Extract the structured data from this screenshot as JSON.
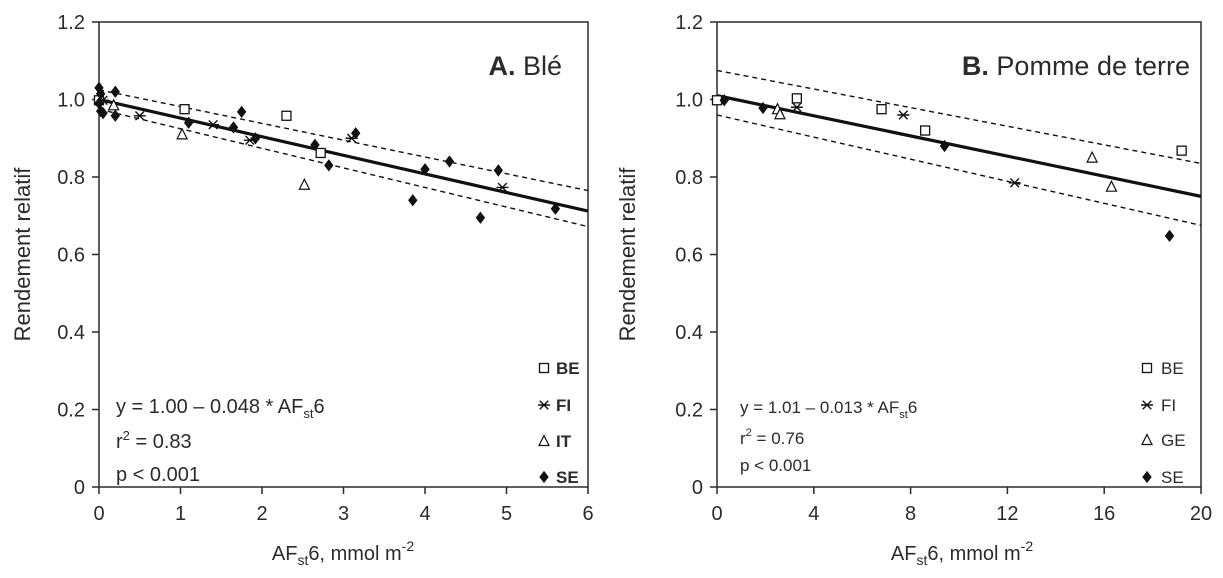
{
  "colors": {
    "axis": "#2b2b2b",
    "line": "#111111",
    "text": "#2b2b2b"
  },
  "chart_data": [
    {
      "type": "scatter",
      "panel_label": "A.",
      "title": "Blé",
      "xlabel_parts": {
        "pre": "AF",
        "sub": "st",
        "post": "6, mmol m",
        "sup": "-2"
      },
      "ylabel": "Rendement relatif",
      "xlim": [
        0,
        6
      ],
      "ylim": [
        0,
        1.2
      ],
      "x_ticks": [
        0,
        1,
        2,
        3,
        4,
        5,
        6
      ],
      "y_ticks": [
        0,
        0.2,
        0.4,
        0.6,
        0.8,
        1.0,
        1.2
      ],
      "x_tick_labels": [
        "0",
        "1",
        "2",
        "3",
        "4",
        "5",
        "6"
      ],
      "y_tick_labels": [
        "0",
        "0.2",
        "0.4",
        "0.6",
        "0.8",
        "1.0",
        "1.2"
      ],
      "regression": {
        "intercept": 1.0,
        "slope": -0.048,
        "ci_upper": [
          [
            0,
            1.025
          ],
          [
            6,
            0.765
          ]
        ],
        "ci_lower": [
          [
            0,
            0.975
          ],
          [
            6,
            0.672
          ]
        ]
      },
      "equation": {
        "main": "y = 1.00 – 0.048 * AF",
        "sub": "st",
        "tail": "6"
      },
      "r2": {
        "label": "r",
        "sup": "2",
        "value": " = 0.83"
      },
      "p_value": "p < 0.001",
      "legend": [
        "BE",
        "FI",
        "IT",
        "SE"
      ],
      "legend_bold": true,
      "series": [
        {
          "name": "BE",
          "marker": "square",
          "points": [
            [
              0.0,
              0.998
            ],
            [
              1.05,
              0.975
            ],
            [
              2.3,
              0.958
            ],
            [
              2.72,
              0.862
            ]
          ]
        },
        {
          "name": "FI",
          "marker": "star",
          "points": [
            [
              0.05,
              0.998
            ],
            [
              0.5,
              0.958
            ],
            [
              1.4,
              0.935
            ],
            [
              1.85,
              0.895
            ],
            [
              3.1,
              0.9
            ],
            [
              4.95,
              0.773
            ]
          ]
        },
        {
          "name": "IT",
          "marker": "triangle",
          "points": [
            [
              0.18,
              0.985
            ],
            [
              1.02,
              0.91
            ],
            [
              2.52,
              0.78
            ]
          ]
        },
        {
          "name": "SE",
          "marker": "diamond",
          "points": [
            [
              0.0,
              1.03
            ],
            [
              0.02,
              1.015
            ],
            [
              0.0,
              0.99
            ],
            [
              0.02,
              0.97
            ],
            [
              0.05,
              0.965
            ],
            [
              0.2,
              1.02
            ],
            [
              0.2,
              0.958
            ],
            [
              1.1,
              0.94
            ],
            [
              1.65,
              0.928
            ],
            [
              1.75,
              0.968
            ],
            [
              1.92,
              0.9
            ],
            [
              2.65,
              0.883
            ],
            [
              2.82,
              0.83
            ],
            [
              3.15,
              0.913
            ],
            [
              3.85,
              0.74
            ],
            [
              4.0,
              0.82
            ],
            [
              4.3,
              0.84
            ],
            [
              4.68,
              0.695
            ],
            [
              4.9,
              0.817
            ],
            [
              5.6,
              0.718
            ]
          ]
        }
      ]
    },
    {
      "type": "scatter",
      "panel_label": "B.",
      "title": "Pomme de terre",
      "xlabel_parts": {
        "pre": "AF",
        "sub": "st",
        "post": "6, mmol m",
        "sup": "-2"
      },
      "ylabel": "Rendement relatif",
      "xlim": [
        0,
        20
      ],
      "ylim": [
        0,
        1.2
      ],
      "x_ticks": [
        0,
        4,
        8,
        12,
        16,
        20
      ],
      "y_ticks": [
        0,
        0.2,
        0.4,
        0.6,
        0.8,
        1.0,
        1.2
      ],
      "x_tick_labels": [
        "0",
        "4",
        "8",
        "12",
        "16",
        "20"
      ],
      "y_tick_labels": [
        "0",
        "0.2",
        "0.4",
        "0.6",
        "0.8",
        "1.0",
        "1.2"
      ],
      "regression": {
        "intercept": 1.01,
        "slope": -0.013,
        "ci_upper": [
          [
            0,
            1.075
          ],
          [
            20,
            0.835
          ]
        ],
        "ci_lower": [
          [
            0,
            0.96
          ],
          [
            20,
            0.675
          ]
        ]
      },
      "equation": {
        "main": "y = 1.01 – 0.013 * AF",
        "sub": "st",
        "tail": "6"
      },
      "r2": {
        "label": "r",
        "sup": "2",
        "value": " = 0.76"
      },
      "p_value": "p < 0.001",
      "legend": [
        "BE",
        "FI",
        "GE",
        "SE"
      ],
      "legend_bold": false,
      "series": [
        {
          "name": "BE",
          "marker": "square",
          "points": [
            [
              0.0,
              0.998
            ],
            [
              3.3,
              1.003
            ],
            [
              6.8,
              0.975
            ],
            [
              8.6,
              0.92
            ],
            [
              19.2,
              0.868
            ]
          ]
        },
        {
          "name": "FI",
          "marker": "star",
          "points": [
            [
              3.3,
              0.98
            ],
            [
              7.7,
              0.96
            ],
            [
              12.3,
              0.785
            ]
          ]
        },
        {
          "name": "GE",
          "marker": "triangle",
          "points": [
            [
              2.5,
              0.975
            ],
            [
              2.6,
              0.962
            ],
            [
              15.5,
              0.85
            ],
            [
              16.3,
              0.775
            ]
          ]
        },
        {
          "name": "SE",
          "marker": "diamond",
          "points": [
            [
              0.3,
              0.998
            ],
            [
              1.9,
              0.978
            ],
            [
              9.4,
              0.88
            ],
            [
              18.7,
              0.648
            ]
          ]
        }
      ]
    }
  ]
}
